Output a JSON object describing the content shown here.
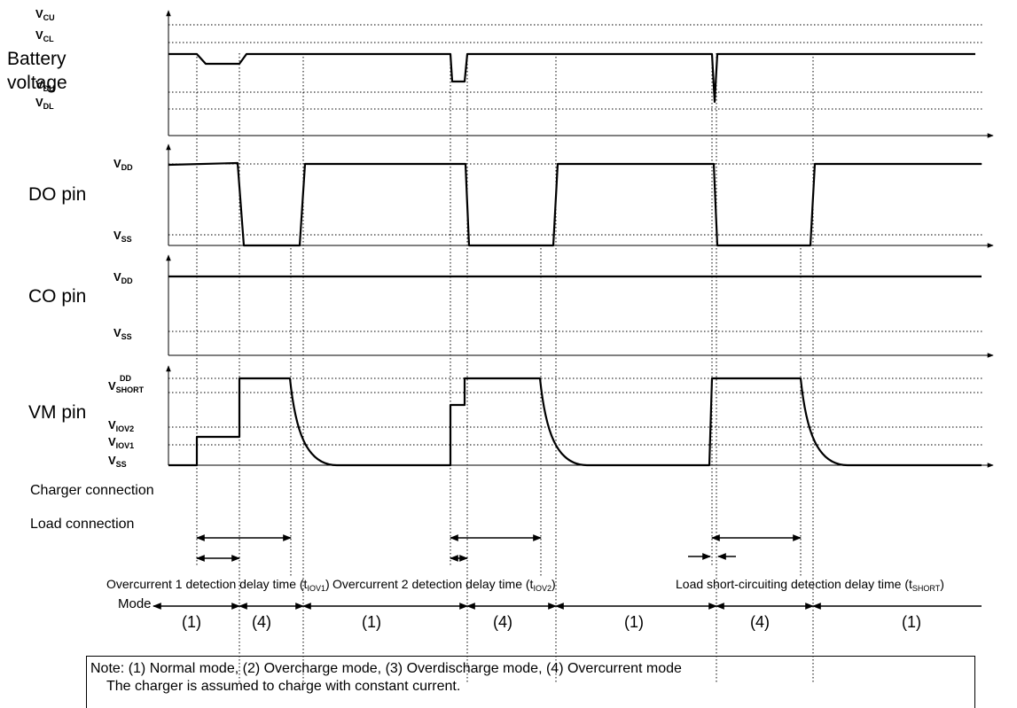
{
  "signals": {
    "battery_label_1": "Battery",
    "battery_label_2": "voltage",
    "do_label": "DO pin",
    "co_label": "CO pin",
    "vm_label": "VM pin"
  },
  "levels": {
    "battery": [
      {
        "main": "V",
        "sub": "CU"
      },
      {
        "main": "V",
        "sub": "CL"
      },
      {
        "main": "V",
        "sub": "DU"
      },
      {
        "main": "V",
        "sub": "DL"
      }
    ],
    "do": [
      {
        "main": "V",
        "sub": "DD"
      },
      {
        "main": "V",
        "sub": "SS"
      }
    ],
    "co": [
      {
        "main": "V",
        "sub": "DD"
      },
      {
        "main": "V",
        "sub": "SS"
      }
    ],
    "vm": [
      {
        "main": "",
        "sub": "DD"
      },
      {
        "main": "V",
        "sub": "SHORT"
      },
      {
        "main": "V",
        "sub": "IOV2"
      },
      {
        "main": "V",
        "sub": "IOV1"
      },
      {
        "main": "V",
        "sub": "SS"
      }
    ]
  },
  "connections": {
    "charger": "Charger connection",
    "load": "Load connection"
  },
  "captions": [
    {
      "text": "Overcurrent 1 detection delay time (t",
      "sub": "IOV1",
      "end": ")"
    },
    {
      "text": "Overcurrent 2 detection delay time (t",
      "sub": "IOV2",
      "end": ")"
    },
    {
      "text": "Load short-circuiting detection delay time (t",
      "sub": "SHORT",
      "end": ")"
    }
  ],
  "mode": {
    "label": "Mode",
    "segments": [
      "(1)",
      "(4)",
      "(1)",
      "(4)",
      "(1)",
      "(4)",
      "(1)"
    ]
  },
  "note": {
    "line1": "Note: (1) Normal mode, (2) Overcharge mode, (3) Overdischarge mode, (4) Overcurrent mode",
    "line2": "The charger is assumed to charge with constant current."
  }
}
